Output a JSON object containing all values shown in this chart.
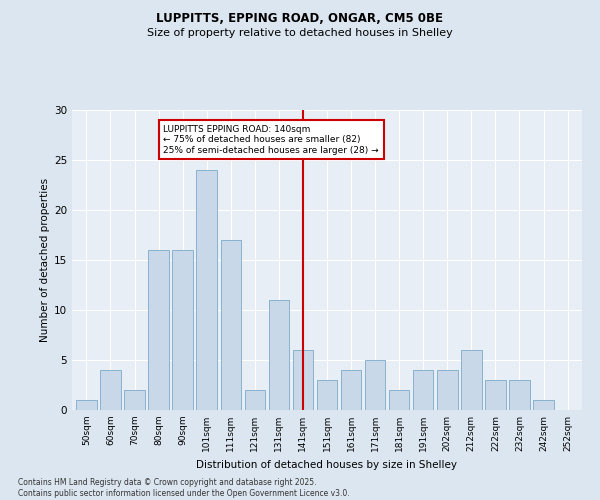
{
  "title1": "LUPPITTS, EPPING ROAD, ONGAR, CM5 0BE",
  "title2": "Size of property relative to detached houses in Shelley",
  "xlabel": "Distribution of detached houses by size in Shelley",
  "ylabel": "Number of detached properties",
  "bar_color": "#c8d8e8",
  "bar_edge_color": "#7aaac8",
  "bin_labels": [
    "50sqm",
    "60sqm",
    "70sqm",
    "80sqm",
    "90sqm",
    "101sqm",
    "111sqm",
    "121sqm",
    "131sqm",
    "141sqm",
    "151sqm",
    "161sqm",
    "171sqm",
    "181sqm",
    "191sqm",
    "202sqm",
    "212sqm",
    "222sqm",
    "232sqm",
    "242sqm",
    "252sqm"
  ],
  "values": [
    1,
    4,
    2,
    16,
    16,
    24,
    17,
    2,
    11,
    6,
    3,
    4,
    5,
    2,
    4,
    4,
    6,
    3,
    3,
    1,
    0
  ],
  "vline_x_index": 9,
  "vline_color": "#cc0000",
  "annotation_text": "LUPPITTS EPPING ROAD: 140sqm\n← 75% of detached houses are smaller (82)\n25% of semi-detached houses are larger (28) →",
  "annotation_box_color": "#ffffff",
  "annotation_box_edge": "#cc0000",
  "ylim": [
    0,
    30
  ],
  "yticks": [
    0,
    5,
    10,
    15,
    20,
    25,
    30
  ],
  "footnote": "Contains HM Land Registry data © Crown copyright and database right 2025.\nContains public sector information licensed under the Open Government Licence v3.0.",
  "background_color": "#dce6f0",
  "plot_bg_color": "#e8eef5",
  "grid_color": "#ffffff"
}
